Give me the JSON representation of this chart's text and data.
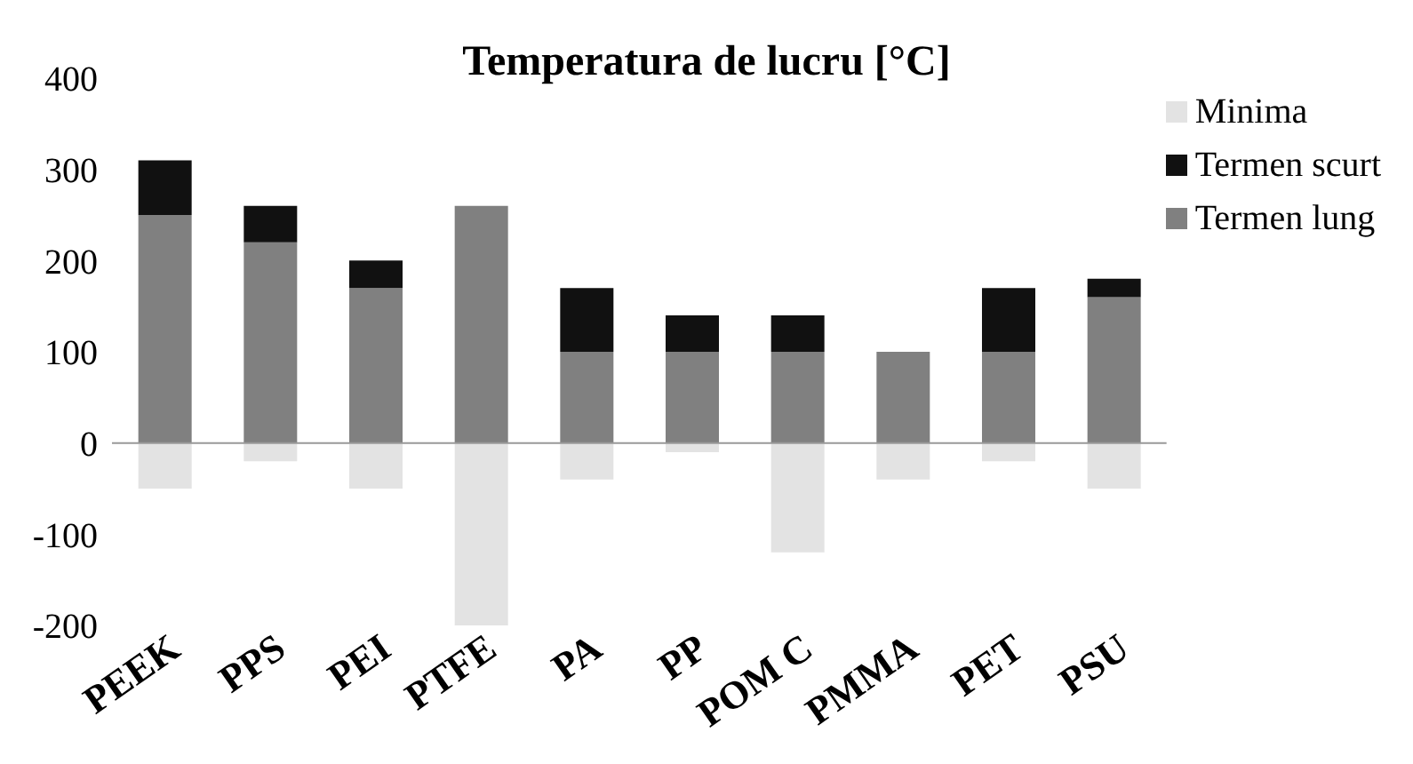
{
  "chart_data": {
    "type": "bar",
    "title": "Temperatura de lucru [°C]",
    "stacked": true,
    "categories": [
      "PEEK",
      "PPS",
      "PEI",
      "PTFE",
      "PA",
      "PP",
      "POM C",
      "PMMA",
      "PET",
      "PSU"
    ],
    "series": [
      {
        "name": "Termen lung",
        "color": "#808080",
        "values": [
          250,
          220,
          170,
          260,
          100,
          100,
          100,
          100,
          100,
          160
        ]
      },
      {
        "name": "Termen scurt",
        "color": "#111111",
        "values": [
          60,
          40,
          30,
          0,
          70,
          40,
          40,
          0,
          70,
          20
        ]
      },
      {
        "name": "Minima",
        "color": "#e3e3e3",
        "values": [
          -50,
          -20,
          -50,
          -200,
          -40,
          -10,
          -120,
          -40,
          -20,
          -50
        ]
      }
    ],
    "ylim": [
      -200,
      400
    ],
    "yticks": [
      -200,
      -100,
      0,
      100,
      200,
      300,
      400
    ],
    "grid": false,
    "legend": "top right",
    "ref_lines": [
      {
        "axis": "y",
        "value": 0,
        "color": "#999999"
      }
    ]
  }
}
